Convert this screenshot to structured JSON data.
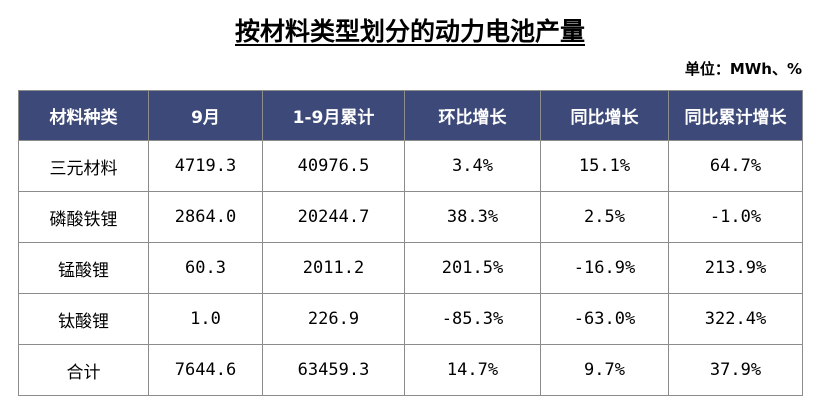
{
  "header": {
    "title": "按材料类型划分的动力电池产量",
    "unit": "单位：MWh、%"
  },
  "table": {
    "columns": [
      "材料种类",
      "9月",
      "1-9月累计",
      "环比增长",
      "同比增长",
      "同比累计增长"
    ],
    "rows": [
      [
        "三元材料",
        "4719.3",
        "40976.5",
        "3.4%",
        "15.1%",
        "64.7%"
      ],
      [
        "磷酸铁锂",
        "2864.0",
        "20244.7",
        "38.3%",
        "2.5%",
        "-1.0%"
      ],
      [
        "锰酸锂",
        "60.3",
        "2011.2",
        "201.5%",
        "-16.9%",
        "213.9%"
      ],
      [
        "钛酸锂",
        "1.0",
        "226.9",
        "-85.3%",
        "-63.0%",
        "322.4%"
      ],
      [
        "合计",
        "7644.6",
        "63459.3",
        "14.7%",
        "9.7%",
        "37.9%"
      ]
    ]
  }
}
